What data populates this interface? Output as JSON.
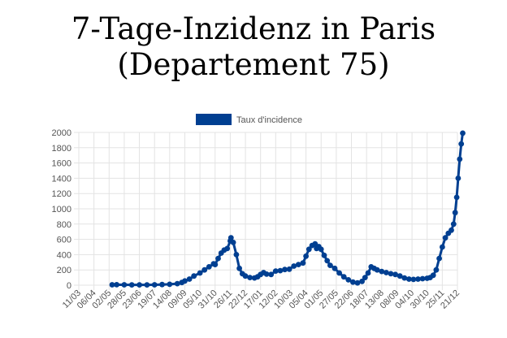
{
  "page": {
    "title_line1": "7-Tage-Inzidenz in Paris",
    "title_line2": "(Departement 75)"
  },
  "colors": {
    "series": "#003f91",
    "grid": "#e3e3e3",
    "axis_text": "#555555"
  },
  "chart_data": {
    "type": "line",
    "title": "7-Tage-Inzidenz in Paris (Departement 75)",
    "xlabel": "",
    "ylabel": "",
    "ylim": [
      0,
      2000
    ],
    "yticks": [
      0,
      200,
      400,
      600,
      800,
      1000,
      1200,
      1400,
      1600,
      1800,
      2000
    ],
    "grid": true,
    "legend_position": "top-center",
    "x_ticks": [
      "11/03",
      "06/04",
      "02/05",
      "28/05",
      "23/06",
      "19/07",
      "14/08",
      "09/09",
      "05/10",
      "31/10",
      "26/11",
      "22/12",
      "17/01",
      "12/02",
      "10/03",
      "05/04",
      "01/05",
      "27/05",
      "22/06",
      "18/07",
      "13/08",
      "08/09",
      "04/10",
      "30/10",
      "25/11",
      "21/12"
    ],
    "series": [
      {
        "name": "Taux d'incidence",
        "points": [
          [
            2.2,
            5
          ],
          [
            2.5,
            6
          ],
          [
            3.0,
            5
          ],
          [
            3.5,
            4
          ],
          [
            4.0,
            4
          ],
          [
            4.5,
            4
          ],
          [
            5.0,
            5
          ],
          [
            5.5,
            8
          ],
          [
            6.0,
            12
          ],
          [
            6.5,
            20
          ],
          [
            6.8,
            35
          ],
          [
            7.0,
            55
          ],
          [
            7.3,
            80
          ],
          [
            7.6,
            120
          ],
          [
            8.0,
            160
          ],
          [
            8.3,
            200
          ],
          [
            8.6,
            240
          ],
          [
            8.9,
            280
          ],
          [
            9.0,
            270
          ],
          [
            9.2,
            350
          ],
          [
            9.4,
            420
          ],
          [
            9.6,
            460
          ],
          [
            9.8,
            480
          ],
          [
            10.0,
            580
          ],
          [
            10.05,
            620
          ],
          [
            10.2,
            560
          ],
          [
            10.4,
            400
          ],
          [
            10.6,
            220
          ],
          [
            10.8,
            150
          ],
          [
            11.0,
            120
          ],
          [
            11.3,
            100
          ],
          [
            11.6,
            95
          ],
          [
            11.8,
            110
          ],
          [
            12.0,
            140
          ],
          [
            12.2,
            165
          ],
          [
            12.4,
            145
          ],
          [
            12.7,
            140
          ],
          [
            13.0,
            185
          ],
          [
            13.3,
            190
          ],
          [
            13.6,
            205
          ],
          [
            13.9,
            210
          ],
          [
            14.2,
            250
          ],
          [
            14.5,
            270
          ],
          [
            14.8,
            290
          ],
          [
            15.0,
            380
          ],
          [
            15.2,
            470
          ],
          [
            15.4,
            520
          ],
          [
            15.6,
            540
          ],
          [
            15.7,
            480
          ],
          [
            15.85,
            505
          ],
          [
            16.0,
            470
          ],
          [
            16.2,
            390
          ],
          [
            16.4,
            320
          ],
          [
            16.6,
            260
          ],
          [
            16.9,
            220
          ],
          [
            17.2,
            160
          ],
          [
            17.5,
            110
          ],
          [
            17.8,
            70
          ],
          [
            18.1,
            40
          ],
          [
            18.4,
            30
          ],
          [
            18.7,
            50
          ],
          [
            18.9,
            100
          ],
          [
            19.1,
            160
          ],
          [
            19.3,
            240
          ],
          [
            19.5,
            220
          ],
          [
            19.7,
            200
          ],
          [
            20.0,
            180
          ],
          [
            20.3,
            165
          ],
          [
            20.6,
            150
          ],
          [
            20.9,
            140
          ],
          [
            21.2,
            120
          ],
          [
            21.5,
            95
          ],
          [
            21.8,
            80
          ],
          [
            22.1,
            75
          ],
          [
            22.4,
            80
          ],
          [
            22.7,
            85
          ],
          [
            23.0,
            90
          ],
          [
            23.2,
            100
          ],
          [
            23.4,
            130
          ],
          [
            23.6,
            200
          ],
          [
            23.8,
            350
          ],
          [
            24.0,
            500
          ],
          [
            24.2,
            620
          ],
          [
            24.4,
            680
          ],
          [
            24.6,
            720
          ],
          [
            24.75,
            800
          ],
          [
            24.85,
            950
          ],
          [
            24.95,
            1150
          ],
          [
            25.05,
            1400
          ],
          [
            25.15,
            1650
          ],
          [
            25.25,
            1850
          ],
          [
            25.35,
            1990
          ]
        ]
      }
    ]
  }
}
